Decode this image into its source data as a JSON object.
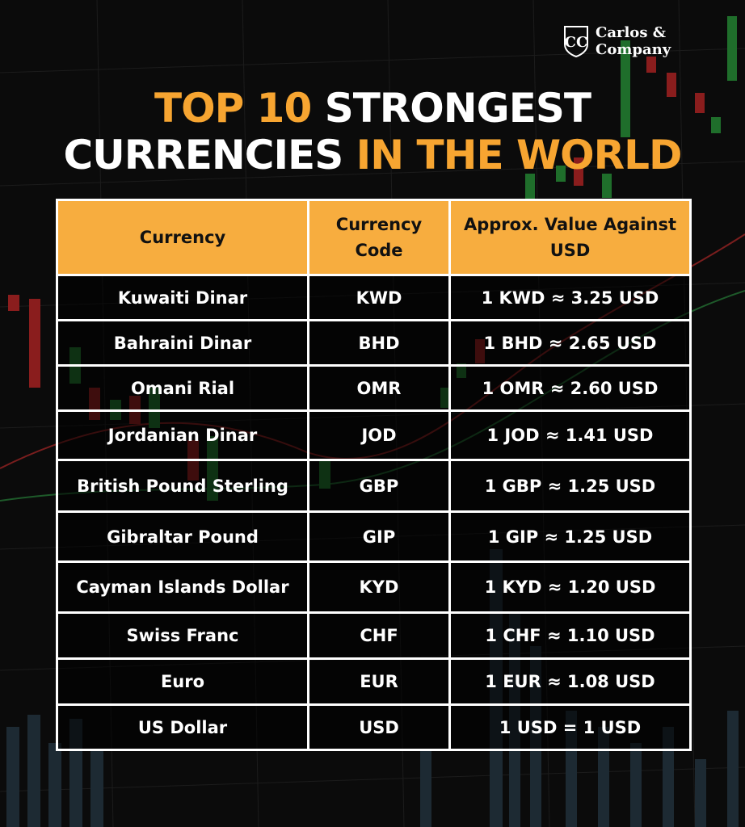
{
  "brand": {
    "line1": "Carlos &",
    "line2": "Company"
  },
  "title": {
    "line1_accent": "TOP 10",
    "line1_rest": "STRONGEST",
    "line2_start": "CURRENCIES",
    "line2_accent": "IN THE WORLD"
  },
  "colors": {
    "accent": "#f7a531",
    "header_bg": "#f7ad3f",
    "background": "#0b0b0b"
  },
  "table": {
    "headers": [
      "Currency",
      "Currency Code",
      "Approx. Value Against USD"
    ],
    "rows": [
      [
        "Kuwaiti Dinar",
        "KWD",
        "1 KWD ≈ 3.25 USD"
      ],
      [
        "Bahraini Dinar",
        "BHD",
        "1 BHD ≈ 2.65 USD"
      ],
      [
        "Omani Rial",
        "OMR",
        "1 OMR ≈ 2.60 USD"
      ],
      [
        "Jordanian Dinar",
        "JOD",
        "1 JOD ≈ 1.41 USD"
      ],
      [
        "British Pound Sterling",
        "GBP",
        "1 GBP ≈ 1.25 USD"
      ],
      [
        "Gibraltar Pound",
        "GIP",
        "1 GIP ≈ 1.25 USD"
      ],
      [
        "Cayman Islands Dollar",
        "KYD",
        "1 KYD ≈ 1.20 USD"
      ],
      [
        "Swiss Franc",
        "CHF",
        "1 CHF ≈ 1.10 USD"
      ],
      [
        "Euro",
        "EUR",
        "1 EUR ≈ 1.08 USD"
      ],
      [
        "US Dollar",
        "USD",
        "1 USD = 1 USD"
      ]
    ]
  }
}
